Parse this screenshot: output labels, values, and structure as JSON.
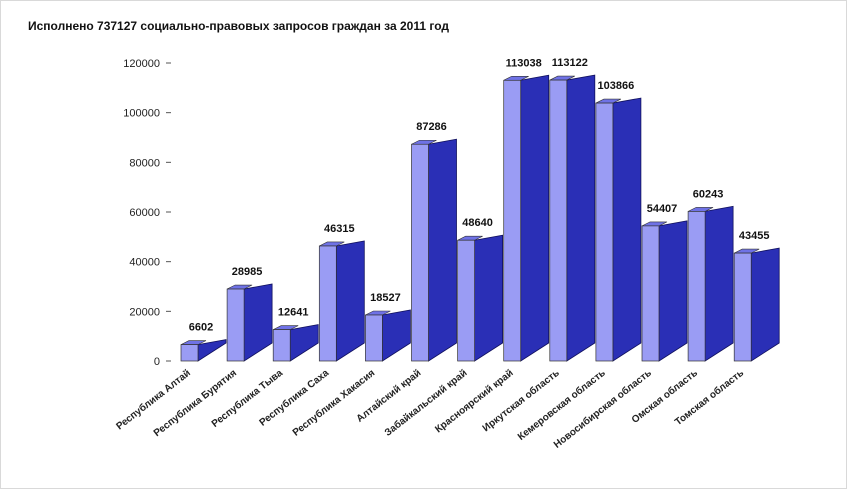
{
  "chart_data": {
    "type": "bar",
    "title": "Исполнено 737127 социально-правовых запросов граждан за 2011 год",
    "categories": [
      "Республика Алтай",
      "Республика Бурятия",
      "Республика Тыва",
      "Республика Саха",
      "Республика Хакасия",
      "Алтайский край",
      "Забайкальский край",
      "Красноярский край",
      "Иркутская область",
      "Кемеровская область",
      "Новосибирская область",
      "Омская область",
      "Томская область"
    ],
    "values": [
      6602,
      28985,
      12641,
      46315,
      18527,
      87286,
      48640,
      113038,
      113122,
      103866,
      54407,
      60243,
      43455
    ],
    "data_labels": [
      "6602",
      "28985",
      "12641",
      "46315",
      "18527",
      "87286",
      "48640",
      "113038",
      "113122",
      "103866",
      "54407",
      "60243",
      "43455"
    ],
    "ylim": [
      0,
      120000
    ],
    "yticks": [
      0,
      20000,
      40000,
      60000,
      80000,
      100000,
      120000
    ],
    "ytick_labels": [
      "0",
      "20000",
      "40000",
      "60000",
      "80000",
      "100000",
      "120000"
    ],
    "xlabel": "",
    "ylabel": "",
    "grid": false,
    "colors": {
      "front": "#9a9cf4",
      "side": "#23238f",
      "top": "#6f72e6",
      "ribbon": "#2a2fb6",
      "ribbon_edge": "#11115e"
    }
  }
}
